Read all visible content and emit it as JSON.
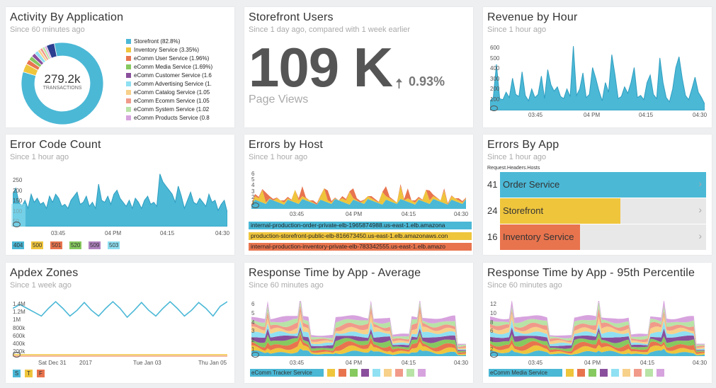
{
  "colors": {
    "blue": "#4bb8d6",
    "yellow": "#efc53c",
    "orange": "#e8744e",
    "green": "#86c95f",
    "purple": "#8a4f9c",
    "lightblue": "#8fe0f2",
    "peach": "#f7d08a",
    "salmon": "#f19a8a",
    "lightgreen": "#b8e3a6",
    "lavender": "#d7a3de",
    "navy": "#2c3e8f",
    "gray": "#aaaaaa"
  },
  "activity": {
    "title": "Activity By Application",
    "subtitle": "Since 60 minutes ago",
    "total": "279.2k",
    "total_label": "TRANSACTIONS",
    "slices": [
      {
        "label": "Storefront (82.8%)",
        "value": 82.8,
        "color": "#4bb8d6"
      },
      {
        "label": "Inventory Service (3.35%)",
        "value": 3.35,
        "color": "#efc53c"
      },
      {
        "label": "eComm User Service (1.96%)",
        "value": 1.96,
        "color": "#e8744e"
      },
      {
        "label": "eComm Media Service (1.69%)",
        "value": 1.69,
        "color": "#86c95f"
      },
      {
        "label": "eComm Customer Service (1.6",
        "value": 1.6,
        "color": "#8a4f9c"
      },
      {
        "label": "eComm Advertising Service (1.",
        "value": 1.5,
        "color": "#8fe0f2"
      },
      {
        "label": "eComm Catalog Service (1.05",
        "value": 1.05,
        "color": "#f7d08a"
      },
      {
        "label": "eComm Ecomm Service (1.05",
        "value": 1.05,
        "color": "#f19a8a"
      },
      {
        "label": "eComm System Service (1.02",
        "value": 1.02,
        "color": "#b8e3a6"
      },
      {
        "label": "eComm Products Service (0.8",
        "value": 0.8,
        "color": "#d7a3de"
      },
      {
        "label": "",
        "value": 3.18,
        "color": "#2c3e8f"
      }
    ]
  },
  "storefront": {
    "title": "Storefront Users",
    "subtitle": "Since 1 day ago, compared with 1 week earlier",
    "value": "109 K",
    "delta": "0.93%",
    "caption": "Page Views"
  },
  "revenue": {
    "title": "Revenue by Hour",
    "subtitle": "Since 1 hour ago",
    "yticks": [
      "600",
      "500",
      "400",
      "300",
      "200",
      "100"
    ],
    "xticks": [
      "03:45",
      "04 PM",
      "04:15",
      "04:30"
    ]
  },
  "errorcode": {
    "title": "Error Code Count",
    "subtitle": "Since 1 hour ago",
    "yticks": [
      "250",
      "200",
      "150",
      "100",
      "50"
    ],
    "xticks": [
      "03:45",
      "04 PM",
      "04:15",
      "04:30"
    ],
    "legend": [
      {
        "label": "404",
        "color": "#4bb8d6"
      },
      {
        "label": "500",
        "color": "#efc53c"
      },
      {
        "label": "501",
        "color": "#e8744e"
      },
      {
        "label": "520",
        "color": "#86c95f"
      },
      {
        "label": "509",
        "color": "#b082c0"
      },
      {
        "label": "503",
        "color": "#8fe0f2"
      }
    ]
  },
  "errorhost": {
    "title": "Errors by Host",
    "subtitle": "Since 1 hour ago",
    "yticks": [
      "6",
      "5",
      "4",
      "3",
      "2",
      "1"
    ],
    "xticks": [
      "03:45",
      "04 PM",
      "04:15",
      "04:30"
    ],
    "hosts": [
      {
        "label": "internal-production-order-private-elb-1965874988.us-east-1.elb.amazona",
        "color": "#4bb8d6"
      },
      {
        "label": "production-storefront-public-elb-816673450.us-east-1.elb.amazonaws.con",
        "color": "#efc53c"
      },
      {
        "label": "internal-production-inventory-private-elb-783342555.us-east-1.elb.amazo",
        "color": "#e8744e"
      }
    ]
  },
  "errorsbyapp": {
    "title": "Errors By App",
    "subtitle": "Since 1 hour ago",
    "facet": "Request.Headers.Hosts",
    "rows": [
      {
        "count": "41",
        "label": "Order Service",
        "value": 41,
        "color": "#4bb8d6"
      },
      {
        "count": "24",
        "label": "Storefront",
        "value": 24,
        "color": "#efc53c"
      },
      {
        "count": "16",
        "label": "Inventory Service",
        "value": 16,
        "color": "#e8744e"
      }
    ]
  },
  "apdex": {
    "title": "Apdex Zones",
    "subtitle": "Since 1 week ago",
    "yticks": [
      "1.4M",
      "1.2M",
      "1M",
      "800k",
      "600k",
      "400k",
      "200k"
    ],
    "xticks": [
      "Sat Dec 31",
      "2017",
      "Tue Jan 03",
      "Thu Jan 05"
    ],
    "legend": [
      {
        "label": "S",
        "color": "#4bb8d6"
      },
      {
        "label": "T",
        "color": "#efc53c"
      },
      {
        "label": "F",
        "color": "#e8744e"
      }
    ]
  },
  "rtavg": {
    "title": "Response Time by App - Average",
    "subtitle": "Since 60 minutes ago",
    "yticks": [
      "6",
      "5",
      "4",
      "3",
      "2",
      "1"
    ],
    "xticks": [
      "03:45",
      "04 PM",
      "04:15",
      "04:30"
    ],
    "first_legend": "eComm Tracker Service"
  },
  "rt95": {
    "title": "Response Time by App - 95th Percentile",
    "subtitle": "Since 60 minutes ago",
    "yticks": [
      "12",
      "10",
      "8",
      "6",
      "4",
      "2"
    ],
    "xticks": [
      "03:45",
      "04 PM",
      "04:15",
      "04:30"
    ],
    "first_legend": "eComm Media Service"
  },
  "stack_colors": [
    "#4bb8d6",
    "#efc53c",
    "#e8744e",
    "#86c95f",
    "#8a4f9c",
    "#8fe0f2",
    "#f7d08a",
    "#f19a8a",
    "#b8e3a6",
    "#d7a3de"
  ]
}
